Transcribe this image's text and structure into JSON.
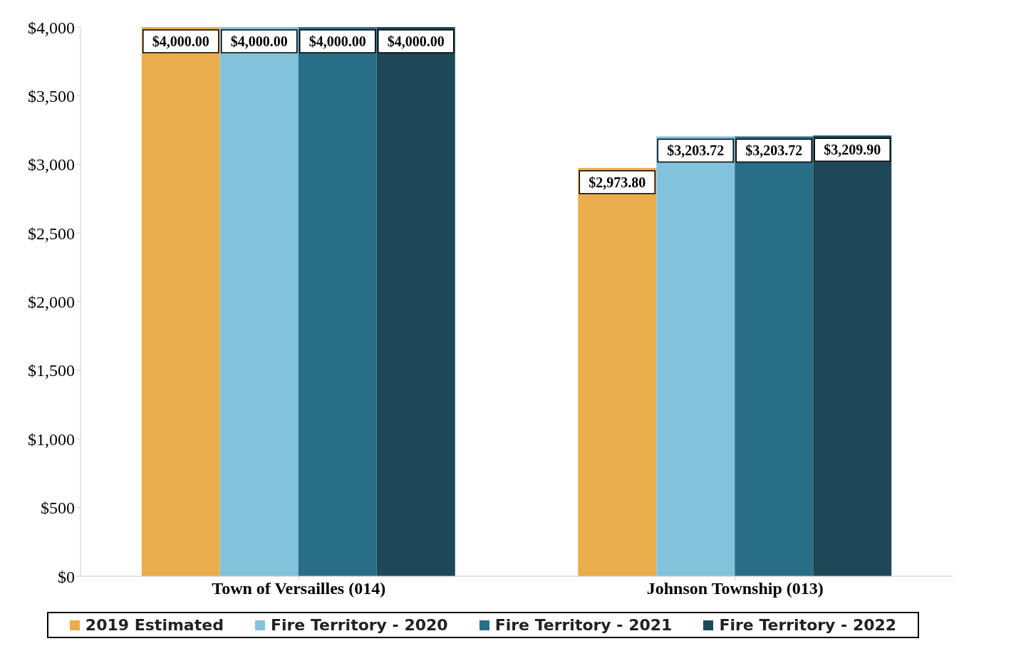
{
  "chart_data": {
    "type": "bar",
    "categories": [
      "Town of Versailles (014)",
      "Johnson Township (013)"
    ],
    "series": [
      {
        "name": "2019 Estimated",
        "color": "#eaad4b",
        "values": [
          4000,
          2973.8
        ],
        "value_labels": [
          "$4,000.00",
          "$2,973.80"
        ]
      },
      {
        "name": "Fire Territory - 2020",
        "color": "#82c3db",
        "values": [
          4000,
          3203.72
        ],
        "value_labels": [
          "$4,000.00",
          "$3,203.72"
        ]
      },
      {
        "name": "Fire Territory - 2021",
        "color": "#2a6f88",
        "values": [
          4000,
          3203.72
        ],
        "value_labels": [
          "$4,000.00",
          "$3,203.72"
        ]
      },
      {
        "name": "Fire Territory - 2022",
        "color": "#1e4858",
        "values": [
          4000,
          3209.9
        ],
        "value_labels": [
          "$4,000.00",
          "$3,209.90"
        ]
      }
    ],
    "ylim": [
      0,
      4000
    ],
    "yticks": [
      {
        "value": 0,
        "label": "$0"
      },
      {
        "value": 500,
        "label": "$500"
      },
      {
        "value": 1000,
        "label": "$1,000"
      },
      {
        "value": 1500,
        "label": "$1,500"
      },
      {
        "value": 2000,
        "label": "$2,000"
      },
      {
        "value": 2500,
        "label": "$2,500"
      },
      {
        "value": 3000,
        "label": "$3,000"
      },
      {
        "value": 3500,
        "label": "$3,500"
      },
      {
        "value": 4000,
        "label": "$4,000"
      }
    ],
    "grid": false,
    "legend": "bottom"
  }
}
